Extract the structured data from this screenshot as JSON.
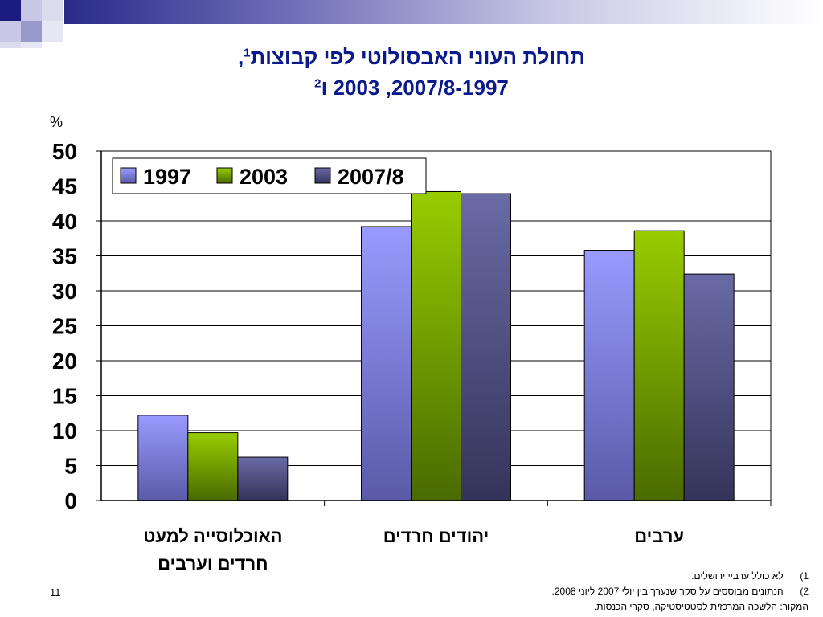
{
  "title": {
    "line1_main": "תחולת העוני האבסולוטי לפי קבוצות",
    "line1_sup": "1",
    "line1_tail": ",",
    "line2_sup": "2",
    "line2_main": "2007/8-1997, 2003 ו"
  },
  "unit": "%",
  "chart_data": {
    "type": "bar",
    "categories": [
      "האוכלוסייה למעט\nחרדים וערבים",
      "יהודים חרדים",
      "ערבים"
    ],
    "category_lines": [
      [
        "האוכלוסייה למעט",
        "חרדים וערבים"
      ],
      [
        "יהודים חרדים"
      ],
      [
        "ערבים"
      ]
    ],
    "series": [
      {
        "name": "1997",
        "values": [
          12.2,
          39.2,
          35.8
        ],
        "color_top": "#9a9aff",
        "color_bottom": "#5a5aa8"
      },
      {
        "name": "2003",
        "values": [
          9.7,
          44.2,
          38.6
        ],
        "color_top": "#99cc00",
        "color_bottom": "#4a6a00"
      },
      {
        "name": "2007/8",
        "values": [
          6.2,
          43.9,
          32.4
        ],
        "color_top": "#6a6aa6",
        "color_bottom": "#34345a"
      }
    ],
    "ylim": [
      0,
      50
    ],
    "yticks": [
      "0",
      "5",
      "10",
      "15",
      "20",
      "25",
      "30",
      "35",
      "40",
      "45",
      "50"
    ],
    "grid": true,
    "legend_position": "top-left"
  },
  "footnotes": [
    {
      "num": "1)",
      "text": "לא כולל ערביי ירושלים."
    },
    {
      "num": "2)",
      "text": "הנתונים מבוססים על סקר שנערך בין יולי 2007 ליוני 2008."
    }
  ],
  "source": "המקור: הלשכה המרכזית לסטטיסטיקה, סקרי הכנסות.",
  "page_number": "11",
  "colors": {
    "title": "#0a1a8a",
    "decor_dark": "#1a1a80",
    "decor_light": "#b8b8dd"
  }
}
